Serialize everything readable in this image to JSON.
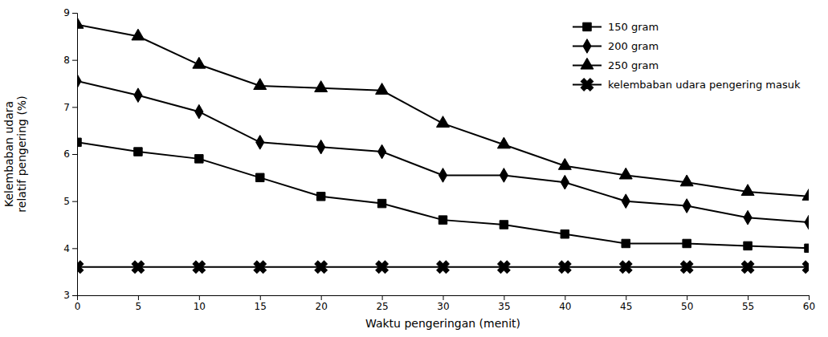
{
  "chart_data": {
    "type": "line",
    "x_label": "Waktu pengeringan (menit)",
    "y_label": "Kelembaban udara\nrelatif pengering (%)",
    "x": [
      0,
      5,
      10,
      15,
      20,
      25,
      30,
      35,
      40,
      45,
      50,
      55,
      60
    ],
    "series": [
      {
        "name": "150 gram",
        "color": "#000000",
        "marker": "square",
        "values": [
          6.25,
          6.05,
          5.9,
          5.5,
          5.1,
          4.95,
          4.6,
          4.5,
          4.3,
          4.1,
          4.1,
          4.05,
          4.0
        ]
      },
      {
        "name": "200 gram",
        "color": "#000000",
        "marker": "diamond",
        "values": [
          7.55,
          7.25,
          6.9,
          6.25,
          6.15,
          6.05,
          5.55,
          5.55,
          5.4,
          5.0,
          4.9,
          4.65,
          4.55
        ]
      },
      {
        "name": "250 gram",
        "color": "#000000",
        "marker": "triangle",
        "values": [
          8.75,
          8.5,
          7.9,
          7.45,
          7.4,
          7.35,
          6.65,
          6.2,
          5.75,
          5.55,
          5.4,
          5.2,
          5.1
        ]
      },
      {
        "name": "kelembaban udara pengering masuk",
        "color": "#000000",
        "marker": "x",
        "values": [
          3.6,
          3.6,
          3.6,
          3.6,
          3.6,
          3.6,
          3.6,
          3.6,
          3.6,
          3.6,
          3.6,
          3.6,
          3.6
        ]
      }
    ],
    "xlim": [
      0,
      60
    ],
    "xticks": [
      0,
      5,
      10,
      15,
      20,
      25,
      30,
      35,
      40,
      45,
      50,
      55,
      60
    ],
    "ylim": [
      3,
      9
    ],
    "yticks": [
      3,
      4,
      5,
      6,
      7,
      8,
      9
    ],
    "grid": false,
    "legend": "upper right"
  }
}
